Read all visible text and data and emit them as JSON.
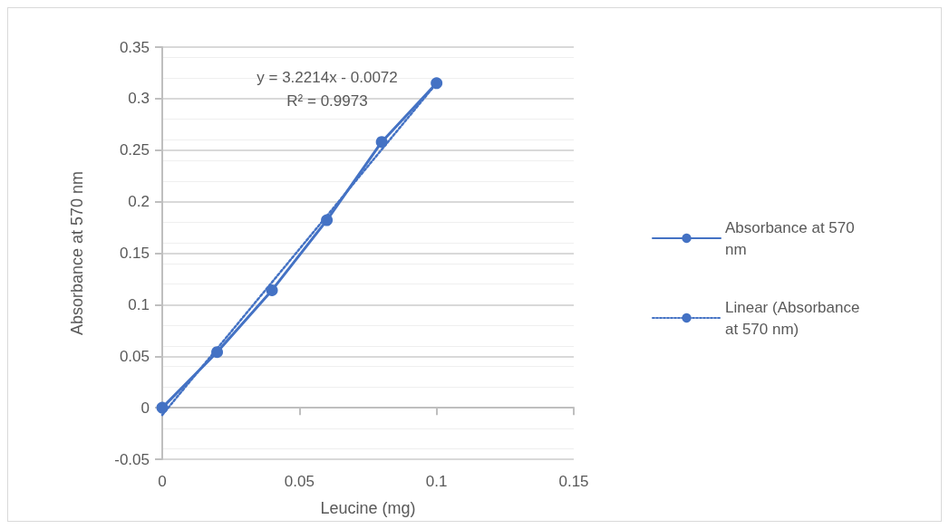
{
  "chart_data": {
    "type": "line",
    "xlabel": "Leucine (mg)",
    "ylabel": "Absorbance at 570 nm",
    "x": [
      0,
      0.02,
      0.04,
      0.06,
      0.08,
      0.1
    ],
    "series": [
      {
        "name": "Absorbance at 570 nm",
        "color": "#4472c4",
        "values": [
          0,
          0.054,
          0.114,
          0.182,
          0.258,
          0.315
        ],
        "marker": "circle",
        "line_style": "solid"
      },
      {
        "name": "Linear (Absorbance at 570 nm)",
        "color": "#4472c4",
        "type": "line",
        "x": [
          0,
          0.1
        ],
        "values": [
          -0.007,
          0.315
        ],
        "marker": "none",
        "line_style": "dotted"
      }
    ],
    "annotations": [
      "y = 3.2214x - 0.0072",
      "R² = 0.9973"
    ],
    "xlim": [
      0,
      0.15
    ],
    "xticks": [
      0,
      0.05,
      0.1,
      0.15
    ],
    "ylim": [
      -0.05,
      0.35
    ],
    "yticks": [
      -0.05,
      0,
      0.05,
      0.1,
      0.15,
      0.2,
      0.25,
      0.3,
      0.35
    ],
    "grid": "y",
    "legend": "right"
  }
}
